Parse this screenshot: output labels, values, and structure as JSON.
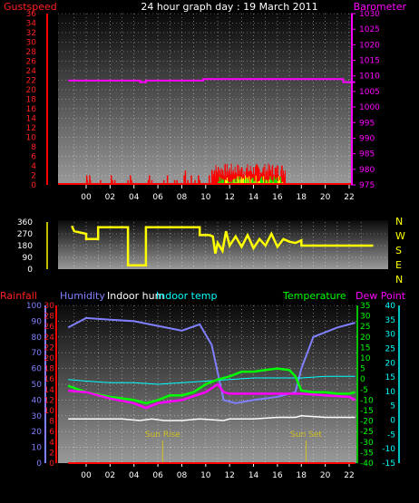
{
  "header": {
    "left": "Gustspeed",
    "title": "24 hour graph day : 19 March 2011",
    "right": "Barometer"
  },
  "mid_labels": {
    "rainfall": "Rainfall",
    "humidity": "Humidity",
    "indoor_hum": "Indoor hum",
    "indoor_temp": "Indoor temp",
    "temperature": "Temperature",
    "dew_point": "Dew Point"
  },
  "compass": [
    "N",
    "W",
    "S",
    "E",
    "N"
  ],
  "colors": {
    "gust": "#ff0000",
    "barometer": "#ff00ff",
    "direction": "#ffff00",
    "humidity": "#8080ff",
    "indoor_hum": "#ffffff",
    "indoor_temp": "#00ffff",
    "temperature": "#00ff00",
    "dew_point": "#ff00ff",
    "rainfall": "#ff0000"
  },
  "chart_data": [
    {
      "type": "line",
      "name": "wind",
      "x_ticks": [
        "00",
        "02",
        "04",
        "06",
        "08",
        "10",
        "12",
        "14",
        "16",
        "18",
        "20",
        "22"
      ],
      "gust_axis": {
        "ylim": [
          0,
          36
        ],
        "ticks": [
          0,
          2,
          4,
          6,
          8,
          10,
          12,
          14,
          16,
          18,
          20,
          22,
          24,
          26,
          28,
          30,
          32,
          34,
          36
        ]
      },
      "barometer_axis": {
        "ylim": [
          975,
          1030
        ],
        "ticks": [
          975,
          980,
          985,
          990,
          995,
          1000,
          1005,
          1010,
          1015,
          1020,
          1025,
          1030
        ]
      },
      "barometer": [
        [
          -1.5,
          1008.5
        ],
        [
          4.5,
          1008.5
        ],
        [
          4.5,
          1008
        ],
        [
          5,
          1008
        ],
        [
          5,
          1008.5
        ],
        [
          9.8,
          1008.5
        ],
        [
          9.8,
          1009
        ],
        [
          21.5,
          1009
        ],
        [
          21.5,
          1008
        ],
        [
          22.5,
          1008
        ]
      ],
      "gust_spikes": [
        [
          0.05,
          2
        ],
        [
          0.1,
          1
        ],
        [
          0.3,
          2
        ],
        [
          0.35,
          1
        ],
        [
          1.2,
          1
        ],
        [
          2.1,
          2
        ],
        [
          2.2,
          1
        ],
        [
          2.4,
          1
        ],
        [
          3.5,
          1
        ],
        [
          3.7,
          2
        ],
        [
          3.8,
          1
        ],
        [
          5.2,
          1
        ],
        [
          5.3,
          2
        ],
        [
          5.5,
          1
        ],
        [
          6.5,
          1
        ],
        [
          6.8,
          2
        ],
        [
          7.4,
          1
        ],
        [
          7.6,
          1
        ],
        [
          8.2,
          2
        ],
        [
          8.3,
          3
        ],
        [
          8.5,
          1
        ],
        [
          8.8,
          2
        ],
        [
          9.1,
          1
        ],
        [
          9.4,
          2
        ],
        [
          9.5,
          1
        ],
        [
          10.3,
          2
        ]
      ],
      "gust_dense": {
        "from": 10.5,
        "to": 16.7,
        "peak": 4.5
      },
      "wind_speed_dense": {
        "from": 11.0,
        "to": 16.5,
        "peak": 2.0
      }
    },
    {
      "type": "line",
      "name": "wind_direction",
      "ylim": [
        0,
        360
      ],
      "y_ticks": [
        0,
        90,
        180,
        270,
        360
      ],
      "series": [
        {
          "values": [
            [
              -1.2,
              330
            ],
            [
              -1,
              290
            ],
            [
              0,
              270
            ],
            [
              0,
              230
            ],
            [
              1,
              230
            ],
            [
              1,
              320
            ],
            [
              3.5,
              320
            ],
            [
              3.5,
              30
            ],
            [
              5,
              30
            ],
            [
              5,
              320
            ],
            [
              9.5,
              320
            ],
            [
              9.5,
              260
            ],
            [
              10.3,
              260
            ],
            [
              10.6,
              250
            ],
            [
              10.8,
              120
            ],
            [
              11,
              200
            ],
            [
              11.4,
              140
            ],
            [
              11.7,
              290
            ],
            [
              12,
              180
            ],
            [
              12.5,
              250
            ],
            [
              13,
              170
            ],
            [
              13.5,
              260
            ],
            [
              14,
              160
            ],
            [
              14.5,
              230
            ],
            [
              15,
              180
            ],
            [
              15.5,
              270
            ],
            [
              16,
              170
            ],
            [
              16.5,
              230
            ],
            [
              17,
              210
            ],
            [
              17.5,
              200
            ],
            [
              18,
              220
            ],
            [
              18,
              180
            ],
            [
              24,
              180
            ]
          ]
        }
      ]
    },
    {
      "type": "line",
      "name": "temperatures",
      "left_axis": {
        "ylim": [
          0,
          100
        ],
        "ticks": [
          0,
          10,
          20,
          30,
          40,
          50,
          60,
          70,
          80,
          90,
          100
        ]
      },
      "rain_axis": {
        "ylim": [
          0,
          30
        ],
        "ticks": [
          0,
          2,
          4,
          6,
          8,
          10,
          12,
          14,
          16,
          18,
          20,
          22,
          24,
          26,
          28,
          30
        ]
      },
      "temp_axis": {
        "ylim": [
          -40,
          35
        ],
        "ticks": [
          -40,
          -35,
          -30,
          -25,
          -20,
          -15,
          -10,
          -5,
          0,
          5,
          10,
          15,
          20,
          25,
          30,
          35
        ]
      },
      "dew_axis": {
        "ylim": [
          -15,
          40
        ],
        "ticks": [
          -15,
          -10,
          -5,
          0,
          5,
          10,
          15,
          20,
          25,
          30,
          35,
          40
        ]
      },
      "annotations": [
        {
          "text": "Sun Rise",
          "x": 6.4
        },
        {
          "text": "Sun Set",
          "x": 18.4
        }
      ],
      "series": [
        {
          "name": "Humidity",
          "axis": "left",
          "values": [
            [
              -1.5,
              86
            ],
            [
              0,
              92
            ],
            [
              2,
              91
            ],
            [
              4,
              90
            ],
            [
              6,
              87
            ],
            [
              8,
              84
            ],
            [
              9.5,
              88
            ],
            [
              10.5,
              75
            ],
            [
              11.5,
              40
            ],
            [
              12.5,
              38
            ],
            [
              14,
              40
            ],
            [
              16,
              42
            ],
            [
              17.5,
              45
            ],
            [
              18,
              60
            ],
            [
              19,
              80
            ],
            [
              21,
              86
            ],
            [
              22.5,
              89
            ]
          ]
        },
        {
          "name": "Indoor hum",
          "axis": "left",
          "values": [
            [
              -1.5,
              28
            ],
            [
              3,
              28
            ],
            [
              4.5,
              27
            ],
            [
              5.5,
              28
            ],
            [
              6.5,
              27
            ],
            [
              8,
              27
            ],
            [
              9.5,
              28
            ],
            [
              11.5,
              27
            ],
            [
              12,
              28
            ],
            [
              14,
              28
            ],
            [
              16,
              29
            ],
            [
              17.5,
              29
            ],
            [
              18,
              30
            ],
            [
              20,
              29
            ],
            [
              22.5,
              29
            ]
          ]
        },
        {
          "name": "Indoor temp",
          "axis": "left",
          "values": [
            [
              -1.5,
              53
            ],
            [
              0,
              52
            ],
            [
              2,
              51
            ],
            [
              4,
              51
            ],
            [
              6,
              50
            ],
            [
              8,
              51
            ],
            [
              10,
              52
            ],
            [
              12,
              53
            ],
            [
              14,
              54
            ],
            [
              16,
              54
            ],
            [
              18,
              54
            ],
            [
              20,
              55
            ],
            [
              22.5,
              55
            ]
          ]
        },
        {
          "name": "Temperature",
          "axis": "left",
          "values": [
            [
              -1.5,
              49
            ],
            [
              0,
              45
            ],
            [
              2,
              42
            ],
            [
              4,
              40
            ],
            [
              5,
              38
            ],
            [
              6,
              40
            ],
            [
              7,
              43
            ],
            [
              8,
              43
            ],
            [
              9,
              45
            ],
            [
              10,
              50
            ],
            [
              11,
              53
            ],
            [
              12,
              55
            ],
            [
              13,
              58
            ],
            [
              14,
              58
            ],
            [
              15,
              59
            ],
            [
              16,
              60
            ],
            [
              17,
              59
            ],
            [
              17.5,
              55
            ],
            [
              18,
              46
            ],
            [
              19,
              45
            ],
            [
              20,
              45
            ],
            [
              21,
              44
            ],
            [
              22,
              44
            ],
            [
              22.5,
              45
            ]
          ]
        },
        {
          "name": "Dew Point",
          "axis": "left",
          "values": [
            [
              -1.5,
              46
            ],
            [
              0,
              45
            ],
            [
              2,
              41
            ],
            [
              4,
              38
            ],
            [
              5,
              35
            ],
            [
              6,
              38
            ],
            [
              8,
              40
            ],
            [
              10,
              45
            ],
            [
              11,
              50
            ],
            [
              11.5,
              45
            ],
            [
              12,
              44
            ],
            [
              14,
              44
            ],
            [
              16,
              44
            ],
            [
              18,
              44
            ],
            [
              20,
              43
            ],
            [
              22,
              42
            ],
            [
              22.5,
              40
            ]
          ]
        },
        {
          "name": "Rainfall",
          "axis": "rain",
          "values": [
            [
              -1.5,
              0
            ],
            [
              22.5,
              0
            ]
          ]
        }
      ]
    }
  ]
}
